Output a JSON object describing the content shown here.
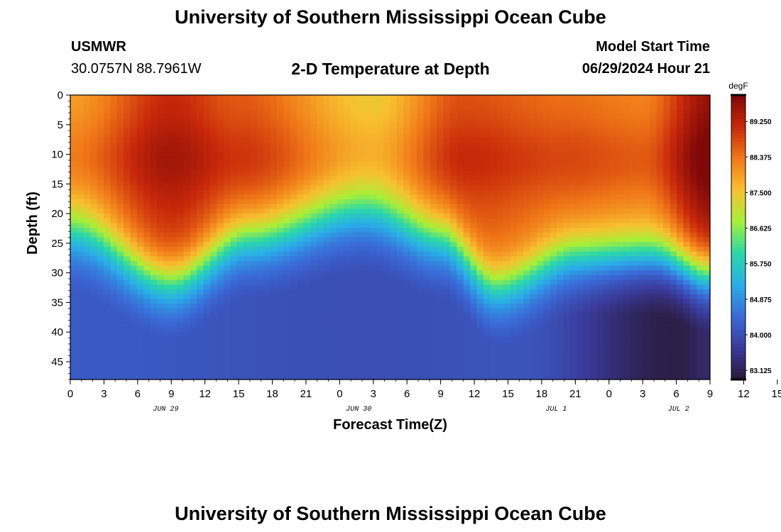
{
  "header": {
    "title": "University of Southern Mississippi Ocean Cube",
    "station": "USMWR",
    "coords": "30.0757N  88.7961W",
    "plot_title": "2-D Temperature at Depth",
    "model_start_label": "Model Start Time",
    "model_start_value": "06/29/2024 Hour 21"
  },
  "footer": {
    "title": "University of Southern Mississippi Ocean Cube"
  },
  "colors": {
    "stops": [
      "#2a1a3a",
      "#3a3a9a",
      "#3a6ad8",
      "#2aaee8",
      "#2ad8a8",
      "#a8f038",
      "#f8c030",
      "#f07818",
      "#c8280a",
      "#800808"
    ]
  },
  "chart_data": {
    "type": "heatmap",
    "title": "2-D Temperature at Depth",
    "xlabel": "Forecast Time(Z)",
    "ylabel": "Depth (ft)",
    "x_hours_from_jun29_00z": [
      0,
      57
    ],
    "ylim": [
      0,
      48
    ],
    "x_ticks": [
      "0",
      "3",
      "6",
      "9",
      "12",
      "15",
      "18",
      "21",
      "0",
      "3",
      "6",
      "9",
      "12",
      "15",
      "18",
      "21",
      "0",
      "3",
      "6",
      "9",
      "12",
      "15",
      "18",
      "21",
      "0",
      "3",
      "6"
    ],
    "y_ticks": [
      "0",
      "5",
      "10",
      "15",
      "20",
      "25",
      "30",
      "35",
      "40",
      "45"
    ],
    "y_tick_values": [
      0,
      5,
      10,
      15,
      20,
      25,
      30,
      35,
      40,
      45
    ],
    "day_labels": [
      {
        "label": "JUN 29",
        "hour": 8.5
      },
      {
        "label": "JUN 30",
        "hour": 25.7
      },
      {
        "label": "JUL 1",
        "hour": 43.3
      },
      {
        "label": "JUL 2",
        "hour": 54.2
      }
    ],
    "colorbar": {
      "unit": "degF",
      "range": [
        82.9,
        89.9
      ],
      "labels": [
        "89.250",
        "88.375",
        "87.500",
        "86.625",
        "85.750",
        "84.875",
        "84.000",
        "83.125"
      ],
      "values": [
        89.25,
        88.375,
        87.5,
        86.625,
        85.75,
        84.875,
        84.0,
        83.125
      ]
    },
    "surface_temp_degF": [
      {
        "hour": 0,
        "value": 87.9
      },
      {
        "hour": 9,
        "value": 89.1
      },
      {
        "hour": 15,
        "value": 88.6
      },
      {
        "hour": 27,
        "value": 87.4
      },
      {
        "hour": 35,
        "value": 88.7
      },
      {
        "hour": 44,
        "value": 88.4
      },
      {
        "hour": 51,
        "value": 88.2
      },
      {
        "hour": 57,
        "value": 89.6
      }
    ],
    "thermocline_depth_ft": [
      {
        "hour": 0,
        "value": 23
      },
      {
        "hour": 9,
        "value": 31
      },
      {
        "hour": 16,
        "value": 24
      },
      {
        "hour": 26,
        "value": 20
      },
      {
        "hour": 33,
        "value": 24
      },
      {
        "hour": 38,
        "value": 32
      },
      {
        "hour": 45,
        "value": 27
      },
      {
        "hour": 52,
        "value": 27
      },
      {
        "hour": 57,
        "value": 30
      }
    ],
    "bottom_temp_degF": [
      {
        "hour": 0,
        "value": 84.2
      },
      {
        "hour": 27,
        "value": 84.0
      },
      {
        "hour": 40,
        "value": 84.1
      },
      {
        "hour": 54,
        "value": 83.0
      },
      {
        "hour": 57,
        "value": 83.3
      }
    ]
  }
}
